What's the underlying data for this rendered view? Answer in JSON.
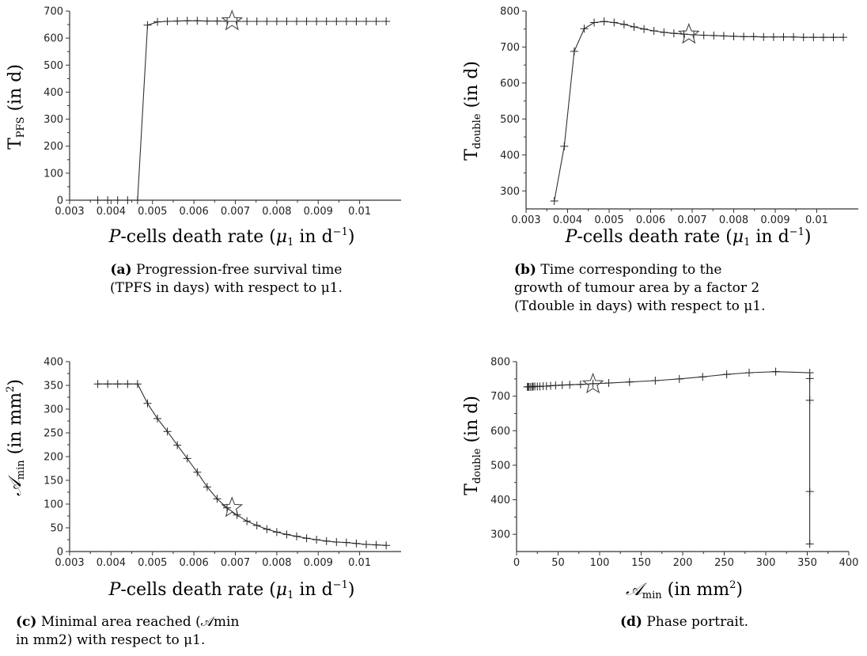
{
  "chart_data": [
    {
      "id": "a",
      "type": "line",
      "xlabel": "P-cells death rate (μ1 in d−1)",
      "ylabel": "TPFS (in d)",
      "xlim": [
        0.003,
        0.011
      ],
      "ylim": [
        0,
        700
      ],
      "x_ticks": [
        "0.003",
        "0.004",
        "0.005",
        "0.006",
        "0.007",
        "0.008",
        "0.009",
        "0.01"
      ],
      "y_ticks": [
        "0",
        "100",
        "200",
        "300",
        "400",
        "500",
        "600",
        "700"
      ],
      "series": [
        {
          "x": [
            0.00368,
            0.00392,
            0.00416,
            0.0044,
            0.00464,
            0.00488,
            0.00512,
            0.00536,
            0.0056,
            0.00584,
            0.00608,
            0.00632,
            0.00656,
            0.0068,
            0.00704,
            0.00728,
            0.00752,
            0.00776,
            0.008,
            0.00824,
            0.00848,
            0.00872,
            0.00896,
            0.0092,
            0.00944,
            0.00968,
            0.00992,
            0.01016,
            0.0104,
            0.01064
          ],
          "y": [
            0,
            0,
            0,
            0,
            0,
            648,
            660,
            662,
            663,
            664,
            664,
            663,
            663,
            662,
            662,
            662,
            662,
            662,
            662,
            662,
            662,
            662,
            662,
            662,
            662,
            662,
            662,
            662,
            662,
            662
          ]
        }
      ],
      "star": {
        "x": 0.00692,
        "y": 663
      },
      "caption": {
        "tag": "(a)",
        "text_line1": "Progression-free survival time",
        "text_line2": "(TPFS in days) with respect to μ1."
      }
    },
    {
      "id": "b",
      "type": "line",
      "xlabel": "P-cells death rate (μ1 in d−1)",
      "ylabel": "Tdouble (in d)",
      "xlim": [
        0.003,
        0.011
      ],
      "ylim": [
        250,
        800
      ],
      "x_ticks": [
        "0.003",
        "0.004",
        "0.005",
        "0.006",
        "0.007",
        "0.008",
        "0.009",
        "0.01"
      ],
      "y_ticks": [
        "300",
        "400",
        "500",
        "600",
        "700",
        "800"
      ],
      "series": [
        {
          "x": [
            0.00368,
            0.00392,
            0.00416,
            0.0044,
            0.00464,
            0.00488,
            0.00512,
            0.00536,
            0.0056,
            0.00584,
            0.00608,
            0.00632,
            0.00656,
            0.0068,
            0.00704,
            0.00728,
            0.00752,
            0.00776,
            0.008,
            0.00824,
            0.00848,
            0.00872,
            0.00896,
            0.0092,
            0.00944,
            0.00968,
            0.00992,
            0.01016,
            0.0104,
            0.01064
          ],
          "y": [
            272,
            424,
            688,
            751,
            768,
            771,
            768,
            763,
            756,
            750,
            745,
            741,
            738,
            736,
            734,
            733,
            732,
            731,
            730,
            729,
            729,
            728,
            728,
            728,
            728,
            727,
            727,
            727,
            727,
            727
          ]
        }
      ],
      "star": {
        "x": 0.00692,
        "y": 735
      },
      "caption": {
        "tag": "(b)",
        "text_line1": "Time corresponding to the",
        "text_line2": "growth of tumour area by a factor 2",
        "text_line3": "(Tdouble in days) with respect to μ1."
      }
    },
    {
      "id": "c",
      "type": "line",
      "xlabel": "P-cells death rate (μ1 in d−1)",
      "ylabel": "𝒜min (in mm2)",
      "xlim": [
        0.003,
        0.011
      ],
      "ylim": [
        0,
        400
      ],
      "x_ticks": [
        "0.003",
        "0.004",
        "0.005",
        "0.006",
        "0.007",
        "0.008",
        "0.009",
        "0.01"
      ],
      "y_ticks": [
        "0",
        "50",
        "100",
        "150",
        "200",
        "250",
        "300",
        "350",
        "400"
      ],
      "series": [
        {
          "x": [
            0.00368,
            0.00392,
            0.00416,
            0.0044,
            0.00464,
            0.00488,
            0.00512,
            0.00536,
            0.0056,
            0.00584,
            0.00608,
            0.00632,
            0.00656,
            0.0068,
            0.00704,
            0.00728,
            0.00752,
            0.00776,
            0.008,
            0.00824,
            0.00848,
            0.00872,
            0.00896,
            0.0092,
            0.00944,
            0.00968,
            0.00992,
            0.01016,
            0.0104,
            0.01064
          ],
          "y": [
            353,
            353,
            353,
            353,
            353,
            312,
            280,
            253,
            224,
            196,
            167,
            136,
            111,
            92,
            77,
            64,
            55,
            47,
            41,
            36,
            32,
            28,
            25,
            22,
            20,
            19,
            17,
            15,
            14,
            13
          ]
        }
      ],
      "star": {
        "x": 0.00692,
        "y": 92
      },
      "caption": {
        "tag": "(c)",
        "text_line1": "Minimal area reached (𝒜min",
        "text_line2": "in mm2) with respect to μ1."
      }
    },
    {
      "id": "d",
      "type": "line",
      "xlabel": "𝒜min (in mm2)",
      "ylabel": "Tdouble (in d)",
      "xlim": [
        0,
        400
      ],
      "ylim": [
        250,
        800
      ],
      "x_ticks": [
        "0",
        "50",
        "100",
        "150",
        "200",
        "250",
        "300",
        "350",
        "400"
      ],
      "y_ticks": [
        "300",
        "400",
        "500",
        "600",
        "700",
        "800"
      ],
      "series": [
        {
          "x": [
            353,
            353,
            353,
            353,
            353,
            312,
            280,
            253,
            224,
            196,
            167,
            136,
            111,
            92,
            77,
            64,
            55,
            47,
            41,
            36,
            32,
            28,
            25,
            22,
            20,
            19,
            17,
            15,
            14,
            13
          ],
          "y": [
            272,
            424,
            688,
            751,
            768,
            771,
            768,
            763,
            756,
            750,
            745,
            741,
            738,
            736,
            734,
            733,
            732,
            731,
            730,
            729,
            729,
            728,
            728,
            728,
            728,
            727,
            727,
            727,
            727,
            727
          ]
        }
      ],
      "star": {
        "x": 92,
        "y": 735
      },
      "caption": {
        "tag": "(d)",
        "text_line1": "Phase portrait."
      }
    }
  ]
}
